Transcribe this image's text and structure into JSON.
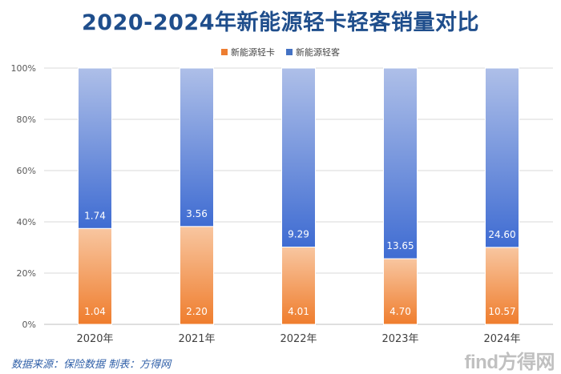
{
  "chart_data": {
    "type": "bar",
    "stacked": "percent",
    "title": "2020-2024年新能源轻卡轻客销量对比",
    "categories": [
      "2020年",
      "2021年",
      "2022年",
      "2023年",
      "2024年"
    ],
    "series": [
      {
        "name": "新能源轻卡",
        "color": "#ed7d31",
        "values": [
          1.04,
          2.2,
          4.01,
          4.7,
          10.57
        ],
        "labels": [
          "1.04",
          "2.20",
          "4.01",
          "4.70",
          "10.57"
        ]
      },
      {
        "name": "新能源轻客",
        "color": "#4472c4",
        "values": [
          1.74,
          3.56,
          9.29,
          13.65,
          24.6
        ],
        "labels": [
          "1.74",
          "3.56",
          "9.29",
          "13.65",
          "24.60"
        ]
      }
    ],
    "yticks": [
      "0%",
      "20%",
      "40%",
      "60%",
      "80%",
      "100%"
    ],
    "ylim": [
      0,
      100
    ],
    "legend_position": "top-center",
    "grid": true
  },
  "footer": {
    "source": "数据来源：保险数据 制表：方得网",
    "logo": "find方得网"
  }
}
